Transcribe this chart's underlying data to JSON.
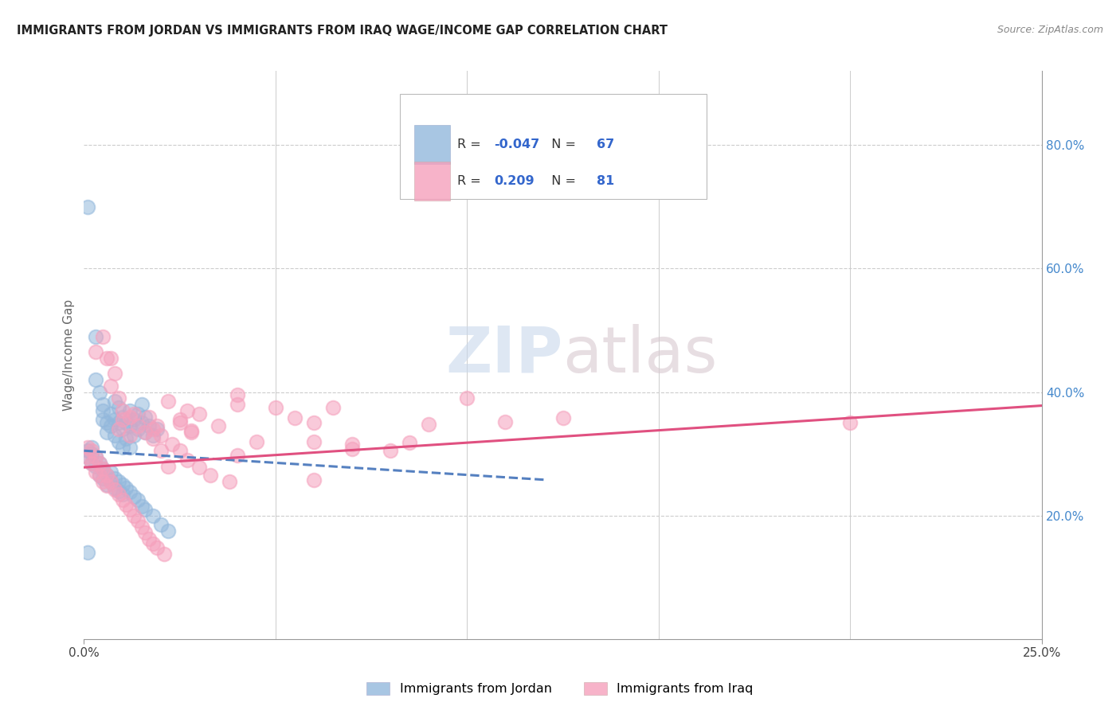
{
  "title": "IMMIGRANTS FROM JORDAN VS IMMIGRANTS FROM IRAQ WAGE/INCOME GAP CORRELATION CHART",
  "source": "Source: ZipAtlas.com",
  "ylabel": "Wage/Income Gap",
  "right_ytick_labels": [
    "20.0%",
    "40.0%",
    "60.0%",
    "80.0%"
  ],
  "right_ytick_values": [
    0.2,
    0.4,
    0.6,
    0.8
  ],
  "xlim": [
    0.0,
    0.25
  ],
  "ylim": [
    0.0,
    0.92
  ],
  "xtick_labels": [
    "0.0%",
    "25.0%"
  ],
  "xtick_values": [
    0.0,
    0.25
  ],
  "jordan_R": -0.047,
  "jordan_N": 67,
  "iraq_R": 0.209,
  "iraq_N": 81,
  "jordan_color": "#93B8DC",
  "iraq_color": "#F5A0BC",
  "jordan_trend_color": "#5580C0",
  "iraq_trend_color": "#E05080",
  "watermark": "ZIPatlas",
  "jordan_trend_x": [
    0.0,
    0.12
  ],
  "jordan_trend_y": [
    0.305,
    0.258
  ],
  "iraq_trend_x": [
    0.0,
    0.25
  ],
  "iraq_trend_y": [
    0.278,
    0.378
  ],
  "jordan_points": [
    [
      0.001,
      0.7
    ],
    [
      0.003,
      0.49
    ],
    [
      0.003,
      0.42
    ],
    [
      0.004,
      0.4
    ],
    [
      0.005,
      0.38
    ],
    [
      0.005,
      0.355
    ],
    [
      0.005,
      0.37
    ],
    [
      0.006,
      0.35
    ],
    [
      0.006,
      0.335
    ],
    [
      0.007,
      0.365
    ],
    [
      0.007,
      0.345
    ],
    [
      0.008,
      0.385
    ],
    [
      0.008,
      0.355
    ],
    [
      0.008,
      0.33
    ],
    [
      0.009,
      0.375
    ],
    [
      0.009,
      0.35
    ],
    [
      0.009,
      0.32
    ],
    [
      0.01,
      0.36
    ],
    [
      0.01,
      0.34
    ],
    [
      0.01,
      0.31
    ],
    [
      0.011,
      0.35
    ],
    [
      0.011,
      0.325
    ],
    [
      0.012,
      0.37
    ],
    [
      0.012,
      0.345
    ],
    [
      0.012,
      0.31
    ],
    [
      0.013,
      0.355
    ],
    [
      0.013,
      0.33
    ],
    [
      0.014,
      0.365
    ],
    [
      0.014,
      0.34
    ],
    [
      0.015,
      0.38
    ],
    [
      0.015,
      0.35
    ],
    [
      0.016,
      0.36
    ],
    [
      0.016,
      0.335
    ],
    [
      0.017,
      0.345
    ],
    [
      0.018,
      0.33
    ],
    [
      0.019,
      0.34
    ],
    [
      0.001,
      0.305
    ],
    [
      0.001,
      0.295
    ],
    [
      0.002,
      0.31
    ],
    [
      0.002,
      0.3
    ],
    [
      0.002,
      0.285
    ],
    [
      0.003,
      0.295
    ],
    [
      0.003,
      0.28
    ],
    [
      0.004,
      0.285
    ],
    [
      0.004,
      0.265
    ],
    [
      0.005,
      0.275
    ],
    [
      0.005,
      0.26
    ],
    [
      0.006,
      0.265
    ],
    [
      0.006,
      0.25
    ],
    [
      0.007,
      0.27
    ],
    [
      0.007,
      0.255
    ],
    [
      0.008,
      0.26
    ],
    [
      0.008,
      0.245
    ],
    [
      0.009,
      0.255
    ],
    [
      0.009,
      0.24
    ],
    [
      0.01,
      0.25
    ],
    [
      0.01,
      0.235
    ],
    [
      0.011,
      0.245
    ],
    [
      0.012,
      0.238
    ],
    [
      0.013,
      0.23
    ],
    [
      0.014,
      0.225
    ],
    [
      0.015,
      0.215
    ],
    [
      0.016,
      0.21
    ],
    [
      0.018,
      0.2
    ],
    [
      0.02,
      0.185
    ],
    [
      0.022,
      0.175
    ],
    [
      0.001,
      0.14
    ]
  ],
  "iraq_points": [
    [
      0.003,
      0.465
    ],
    [
      0.005,
      0.49
    ],
    [
      0.006,
      0.455
    ],
    [
      0.007,
      0.455
    ],
    [
      0.007,
      0.41
    ],
    [
      0.008,
      0.43
    ],
    [
      0.009,
      0.39
    ],
    [
      0.01,
      0.37
    ],
    [
      0.01,
      0.355
    ],
    [
      0.012,
      0.36
    ],
    [
      0.013,
      0.365
    ],
    [
      0.014,
      0.345
    ],
    [
      0.016,
      0.335
    ],
    [
      0.017,
      0.36
    ],
    [
      0.018,
      0.34
    ],
    [
      0.019,
      0.345
    ],
    [
      0.02,
      0.33
    ],
    [
      0.022,
      0.385
    ],
    [
      0.025,
      0.35
    ],
    [
      0.027,
      0.37
    ],
    [
      0.028,
      0.335
    ],
    [
      0.03,
      0.365
    ],
    [
      0.035,
      0.345
    ],
    [
      0.04,
      0.395
    ],
    [
      0.05,
      0.375
    ],
    [
      0.06,
      0.35
    ],
    [
      0.06,
      0.32
    ],
    [
      0.065,
      0.375
    ],
    [
      0.07,
      0.315
    ],
    [
      0.08,
      0.305
    ],
    [
      0.1,
      0.39
    ],
    [
      0.2,
      0.35
    ],
    [
      0.001,
      0.31
    ],
    [
      0.001,
      0.295
    ],
    [
      0.002,
      0.305
    ],
    [
      0.002,
      0.285
    ],
    [
      0.003,
      0.295
    ],
    [
      0.003,
      0.27
    ],
    [
      0.004,
      0.285
    ],
    [
      0.004,
      0.265
    ],
    [
      0.005,
      0.275
    ],
    [
      0.005,
      0.255
    ],
    [
      0.006,
      0.265
    ],
    [
      0.006,
      0.248
    ],
    [
      0.007,
      0.255
    ],
    [
      0.008,
      0.242
    ],
    [
      0.009,
      0.235
    ],
    [
      0.01,
      0.225
    ],
    [
      0.011,
      0.218
    ],
    [
      0.012,
      0.21
    ],
    [
      0.013,
      0.2
    ],
    [
      0.014,
      0.192
    ],
    [
      0.015,
      0.182
    ],
    [
      0.016,
      0.172
    ],
    [
      0.017,
      0.162
    ],
    [
      0.018,
      0.155
    ],
    [
      0.019,
      0.148
    ],
    [
      0.021,
      0.138
    ],
    [
      0.023,
      0.315
    ],
    [
      0.025,
      0.305
    ],
    [
      0.027,
      0.29
    ],
    [
      0.03,
      0.278
    ],
    [
      0.033,
      0.265
    ],
    [
      0.038,
      0.255
    ],
    [
      0.009,
      0.34
    ],
    [
      0.012,
      0.33
    ],
    [
      0.018,
      0.325
    ],
    [
      0.022,
      0.28
    ],
    [
      0.025,
      0.355
    ],
    [
      0.02,
      0.305
    ],
    [
      0.04,
      0.38
    ],
    [
      0.06,
      0.258
    ],
    [
      0.04,
      0.298
    ],
    [
      0.028,
      0.338
    ],
    [
      0.045,
      0.32
    ],
    [
      0.055,
      0.358
    ],
    [
      0.07,
      0.308
    ],
    [
      0.085,
      0.318
    ],
    [
      0.09,
      0.348
    ],
    [
      0.11,
      0.352
    ],
    [
      0.125,
      0.358
    ]
  ]
}
